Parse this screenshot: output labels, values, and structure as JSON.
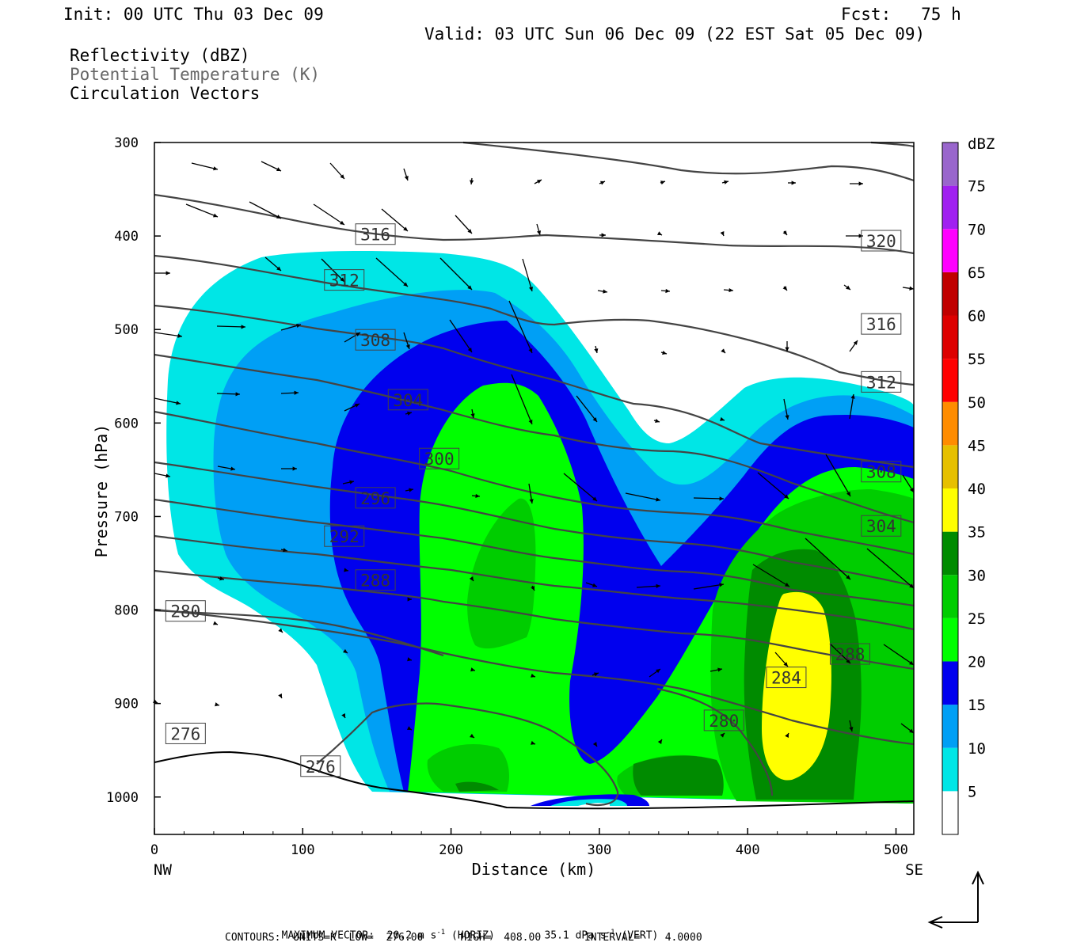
{
  "header": {
    "init": "Init: 00 UTC Thu 03 Dec 09",
    "fcst": "Fcst:   75 h",
    "valid": "Valid: 03 UTC Sun 06 Dec 09 (22 EST Sat 05 Dec 09)",
    "field1": "Reflectivity (dBZ)",
    "field2": "Potential Temperature (K)",
    "field3": "Circulation Vectors"
  },
  "chart_data": {
    "type": "cross-section",
    "xlabel": "Distance (km)",
    "ylabel": "Pressure (hPa)",
    "xlim": [
      0,
      512
    ],
    "ylim": [
      1040,
      300
    ],
    "x_ticks": [
      "0",
      "100",
      "200",
      "300",
      "400",
      "500"
    ],
    "y_ticks": [
      "300",
      "400",
      "500",
      "600",
      "700",
      "800",
      "900",
      "1000"
    ],
    "x_end_labels": {
      "left": "NW",
      "right": "SE"
    },
    "colorbar": {
      "unit": "dBZ",
      "levels": [
        "5",
        "10",
        "15",
        "20",
        "25",
        "30",
        "35",
        "40",
        "45",
        "50",
        "55",
        "60",
        "65",
        "70",
        "75"
      ],
      "colors": [
        "#00e6e6",
        "#009ff5",
        "#0000ee",
        "#00ff00",
        "#00cd00",
        "#008b00",
        "#ffff00",
        "#e6c000",
        "#ff8c00",
        "#ff0000",
        "#dd0000",
        "#c00000",
        "#ff00ff",
        "#a020f0",
        "#9966cc"
      ]
    },
    "theta_labels": [
      {
        "text": "316",
        "x": 149,
        "p": 398
      },
      {
        "text": "320",
        "x": 490,
        "p": 405
      },
      {
        "text": "312",
        "x": 128,
        "p": 447
      },
      {
        "text": "316",
        "x": 490,
        "p": 494
      },
      {
        "text": "308",
        "x": 149,
        "p": 511
      },
      {
        "text": "312",
        "x": 490,
        "p": 556
      },
      {
        "text": "304",
        "x": 171,
        "p": 575
      },
      {
        "text": "300",
        "x": 192,
        "p": 638
      },
      {
        "text": "308",
        "x": 490,
        "p": 652
      },
      {
        "text": "296",
        "x": 149,
        "p": 680
      },
      {
        "text": "304",
        "x": 490,
        "p": 710
      },
      {
        "text": "292",
        "x": 128,
        "p": 721
      },
      {
        "text": "288",
        "x": 149,
        "p": 768
      },
      {
        "text": "280",
        "x": 21,
        "p": 801
      },
      {
        "text": "288",
        "x": 469,
        "p": 847
      },
      {
        "text": "284",
        "x": 426,
        "p": 872
      },
      {
        "text": "280",
        "x": 384,
        "p": 918
      },
      {
        "text": "276",
        "x": 21,
        "p": 932
      },
      {
        "text": "276",
        "x": 112,
        "p": 967
      }
    ]
  },
  "footer": {
    "max_vector_label": "MAXIMUM VECTOR:",
    "horiz": "20.2 m s",
    "horiz_unit": "(HORIZ)",
    "vert": "35.1 dPa s",
    "vert_unit": "(VERT)",
    "exponent": "-1",
    "contours": "CONTOURS:  UNITS=K  LOW=  276.00      HIGH=  408.00       INTERVAL=    4.0000"
  }
}
